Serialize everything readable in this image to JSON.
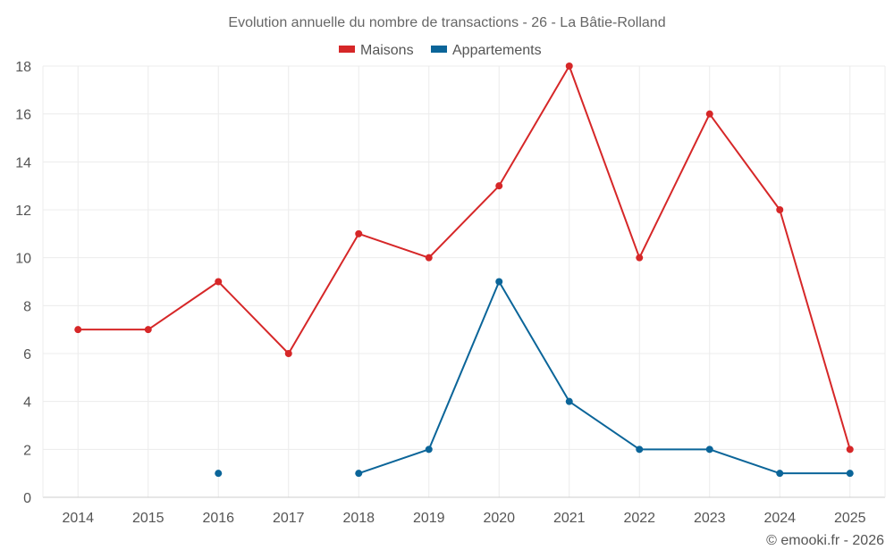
{
  "chart_data": {
    "type": "line",
    "title": "Evolution annuelle du nombre de transactions - 26 - La Bâtie-Rolland",
    "xlabel": "",
    "ylabel": "",
    "categories": [
      "2014",
      "2015",
      "2016",
      "2017",
      "2018",
      "2019",
      "2020",
      "2021",
      "2022",
      "2023",
      "2024",
      "2025"
    ],
    "ylim": [
      0,
      18
    ],
    "yticks": [
      0,
      2,
      4,
      6,
      8,
      10,
      12,
      14,
      16,
      18
    ],
    "grid": true,
    "legend_position": "top-center",
    "series": [
      {
        "name": "Maisons",
        "color": "#d62728",
        "values": [
          7,
          7,
          9,
          6,
          11,
          10,
          13,
          18,
          10,
          16,
          12,
          2
        ]
      },
      {
        "name": "Appartements",
        "color": "#0b6599",
        "values": [
          null,
          null,
          1,
          null,
          1,
          2,
          9,
          4,
          2,
          2,
          1,
          1
        ]
      }
    ]
  },
  "credit": "© emooki.fr - 2026"
}
